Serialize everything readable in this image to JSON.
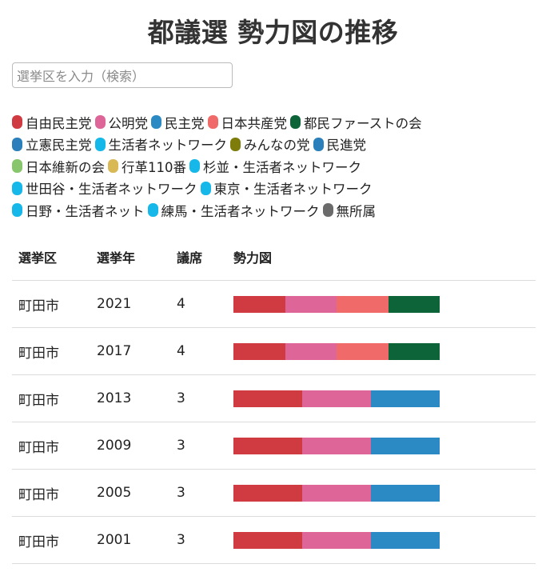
{
  "title": "都議選 勢力図の推移",
  "search": {
    "placeholder": "選挙区を入力（検索）",
    "value": ""
  },
  "legend": [
    [
      {
        "label": "自由民主党",
        "color": "#d03b42"
      },
      {
        "label": "公明党",
        "color": "#de6597"
      },
      {
        "label": "民主党",
        "color": "#2b8ac3"
      },
      {
        "label": "日本共産党",
        "color": "#f06a6a"
      },
      {
        "label": "都民ファーストの会",
        "color": "#0d6438"
      }
    ],
    [
      {
        "label": "立憲民主党",
        "color": "#2b7fba"
      },
      {
        "label": "生活者ネットワーク",
        "color": "#15b8e8"
      },
      {
        "label": "みんなの党",
        "color": "#7e7d0c"
      },
      {
        "label": "民進党",
        "color": "#2b7fba"
      }
    ],
    [
      {
        "label": "日本維新の会",
        "color": "#88c66d"
      },
      {
        "label": "行革110番",
        "color": "#d9b956"
      },
      {
        "label": "杉並・生活者ネットワーク",
        "color": "#15b8e8"
      }
    ],
    [
      {
        "label": "世田谷・生活者ネットワーク",
        "color": "#15b8e8"
      },
      {
        "label": "東京・生活者ネットワーク",
        "color": "#15b8e8"
      }
    ],
    [
      {
        "label": "日野・生活者ネット",
        "color": "#15b8e8"
      },
      {
        "label": "練馬・生活者ネットワーク",
        "color": "#15b8e8"
      },
      {
        "label": "無所属",
        "color": "#6b6b6b"
      }
    ]
  ],
  "table": {
    "headers": [
      "選挙区",
      "選挙年",
      "議席",
      "勢力図"
    ],
    "rows": [
      {
        "district": "町田市",
        "year": "2021",
        "seats": "4",
        "parties": [
          "自由民主党",
          "公明党",
          "日本共産党",
          "都民ファーストの会"
        ]
      },
      {
        "district": "町田市",
        "year": "2017",
        "seats": "4",
        "parties": [
          "自由民主党",
          "公明党",
          "日本共産党",
          "都民ファーストの会"
        ]
      },
      {
        "district": "町田市",
        "year": "2013",
        "seats": "3",
        "parties": [
          "自由民主党",
          "公明党",
          "民主党"
        ]
      },
      {
        "district": "町田市",
        "year": "2009",
        "seats": "3",
        "parties": [
          "自由民主党",
          "公明党",
          "民主党"
        ]
      },
      {
        "district": "町田市",
        "year": "2005",
        "seats": "3",
        "parties": [
          "自由民主党",
          "公明党",
          "民主党"
        ]
      },
      {
        "district": "町田市",
        "year": "2001",
        "seats": "3",
        "parties": [
          "自由民主党",
          "公明党",
          "民主党"
        ]
      }
    ]
  }
}
